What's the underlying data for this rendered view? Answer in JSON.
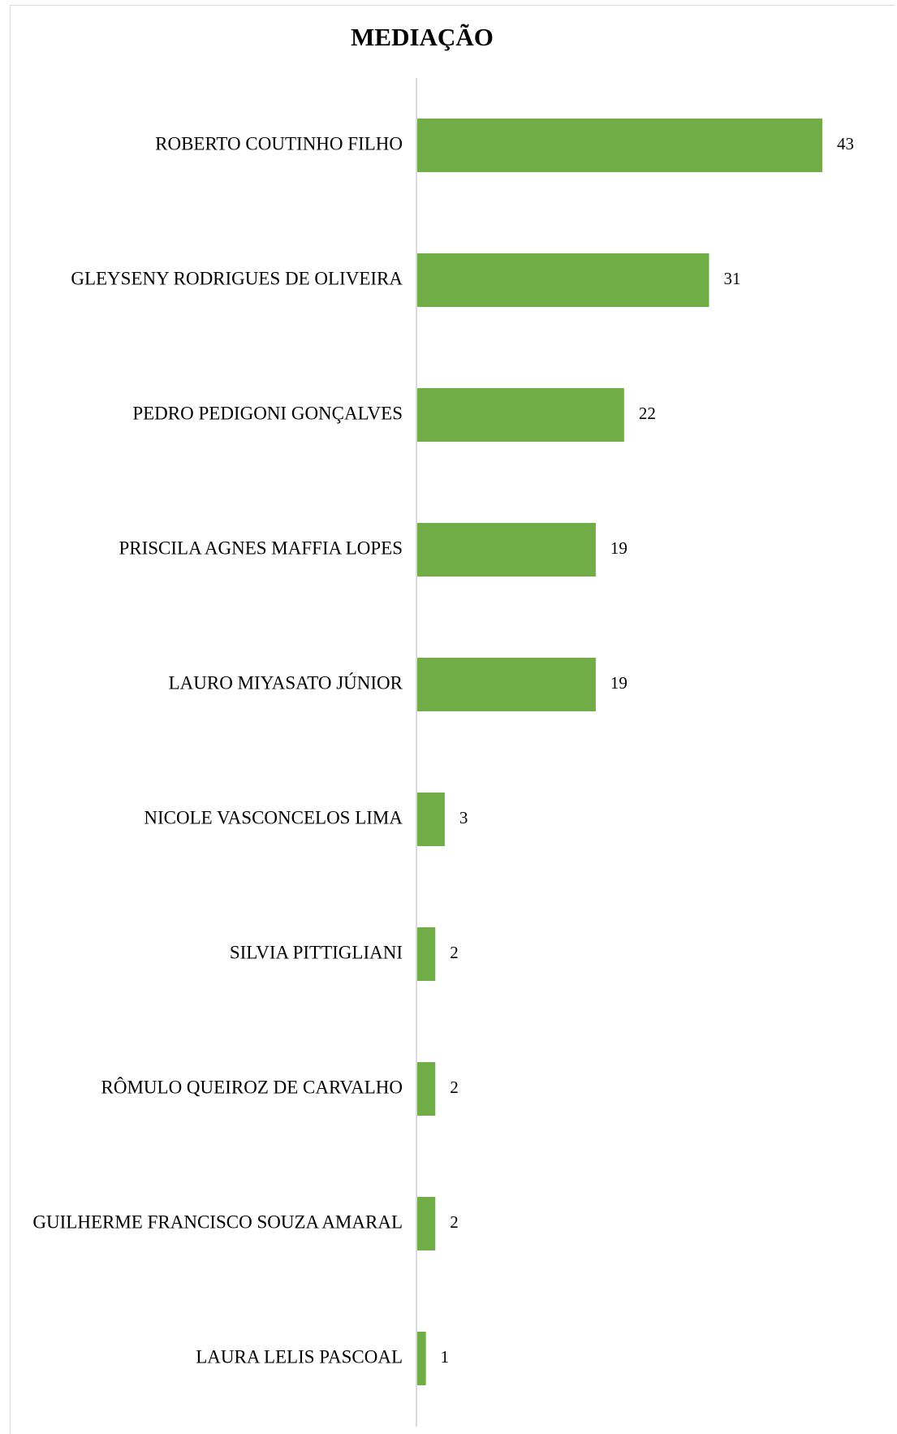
{
  "chart_data": {
    "type": "bar",
    "orientation": "horizontal",
    "title": "MEDIAÇÃO",
    "xlabel": "",
    "ylabel": "",
    "categories": [
      "ROBERTO COUTINHO FILHO",
      "GLEYSENY RODRIGUES DE OLIVEIRA",
      "PEDRO PEDIGONI GONÇALVES",
      "PRISCILA AGNES MAFFIA LOPES",
      "LAURO MIYASATO JÚNIOR",
      "NICOLE VASCONCELOS LIMA",
      "SILVIA PITTIGLIANI",
      "RÔMULO QUEIROZ DE CARVALHO",
      "GUILHERME FRANCISCO SOUZA AMARAL",
      "LAURA LELIS PASCOAL"
    ],
    "values": [
      43,
      31,
      22,
      19,
      19,
      3,
      2,
      2,
      2,
      1
    ],
    "xlim": [
      0,
      43
    ],
    "bar_color": "#70ad47",
    "axis_color": "#d9d9d9",
    "grid": false,
    "data_labels": true
  }
}
